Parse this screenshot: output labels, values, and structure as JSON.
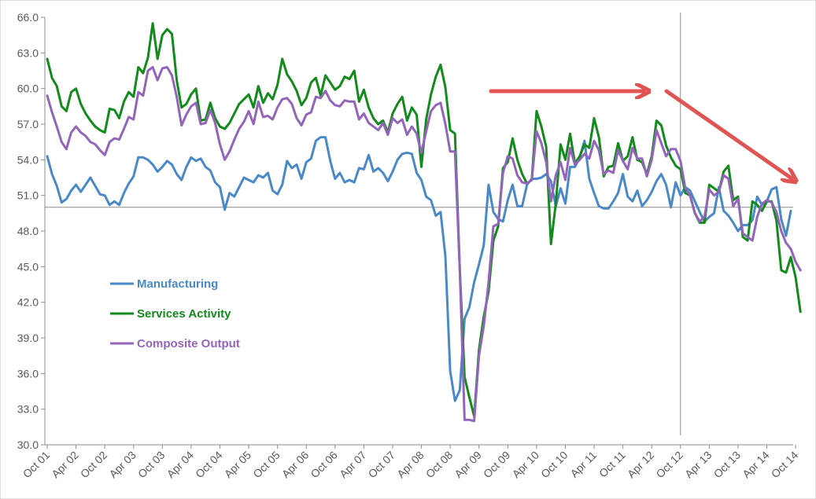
{
  "chart_data": {
    "type": "line",
    "title": "",
    "xlabel": "",
    "ylabel": "",
    "ylim": [
      30.0,
      66.0
    ],
    "y_ticks": [
      "30.0",
      "33.0",
      "36.0",
      "39.0",
      "42.0",
      "45.0",
      "48.0",
      "51.0",
      "54.0",
      "57.0",
      "60.0",
      "63.0",
      "66.0"
    ],
    "x_start": "Oct 01",
    "x_ticks": [
      "Oct 01",
      "Apr 02",
      "Oct 02",
      "Apr 03",
      "Oct 03",
      "Apr 04",
      "Oct 04",
      "Apr 05",
      "Oct 05",
      "Apr 06",
      "Oct 06",
      "Apr 07",
      "Oct 07",
      "Apr 08",
      "Oct 08",
      "Apr 09",
      "Oct 09",
      "Apr 10",
      "Oct 10",
      "Apr 11",
      "Oct 11",
      "Apr 12",
      "Oct 12",
      "Apr 13",
      "Oct 13",
      "Apr 14",
      "Oct 14"
    ],
    "reference_hline": 50.0,
    "reference_vline_x": "Oct 12",
    "legend_position": "left-center",
    "grid": false,
    "series": [
      {
        "name": "Manufacturing",
        "color": "#4a89c8",
        "values": [
          54.3,
          52.8,
          51.8,
          50.4,
          50.7,
          51.4,
          51.9,
          51.3,
          51.9,
          52.5,
          51.8,
          51.1,
          51.0,
          50.2,
          50.5,
          50.2,
          51.2,
          52.0,
          52.6,
          54.2,
          54.2,
          54.0,
          53.6,
          53.0,
          53.4,
          53.9,
          53.6,
          52.8,
          52.3,
          53.4,
          54.2,
          53.9,
          54.1,
          53.4,
          53.1,
          52.1,
          51.7,
          49.8,
          51.2,
          50.9,
          51.7,
          52.5,
          52.3,
          52.1,
          52.7,
          52.5,
          52.9,
          51.4,
          51.1,
          51.9,
          53.9,
          53.3,
          53.6,
          52.4,
          53.8,
          54.1,
          55.6,
          55.9,
          55.9,
          53.9,
          52.4,
          52.9,
          52.1,
          52.3,
          52.1,
          53.3,
          53.2,
          54.4,
          53.0,
          53.3,
          52.9,
          52.2,
          53.0,
          54.0,
          54.5,
          54.6,
          54.5,
          52.9,
          52.3,
          50.9,
          50.6,
          49.3,
          49.6,
          45.9,
          36.2,
          33.7,
          34.6,
          40.6,
          41.6,
          43.7,
          45.2,
          46.8,
          51.9,
          49.6,
          49.0,
          48.8,
          50.6,
          51.9,
          50.1,
          50.1,
          51.9,
          52.4,
          52.4,
          52.5,
          52.8,
          52.2,
          50.1,
          51.6,
          50.3,
          53.4,
          53.4,
          54.2,
          55.6,
          52.4,
          51.2,
          50.1,
          49.9,
          49.9,
          50.5,
          51.2,
          52.8,
          50.9,
          50.5,
          51.4,
          50.1,
          50.6,
          51.3,
          52.2,
          52.8,
          51.9,
          50.0,
          52.1,
          51.0,
          51.7,
          51.4,
          50.5,
          49.6,
          48.8,
          49.2,
          49.5,
          51.7,
          49.7,
          49.3,
          48.7,
          48.0,
          48.5,
          48.5,
          48.9,
          50.9,
          50.2,
          50.5,
          51.5,
          51.7,
          49.0,
          47.6,
          49.7
        ]
      },
      {
        "name": "Services Activity",
        "color": "#128a1c",
        "values": [
          62.5,
          60.9,
          60.2,
          58.5,
          58.1,
          59.7,
          60.0,
          58.7,
          57.9,
          57.3,
          56.8,
          56.5,
          56.3,
          58.3,
          58.2,
          57.5,
          58.9,
          59.7,
          59.3,
          61.8,
          61.3,
          62.6,
          65.5,
          62.5,
          64.5,
          65.0,
          64.6,
          60.7,
          58.4,
          58.7,
          59.5,
          60.0,
          57.3,
          57.4,
          58.8,
          57.5,
          56.8,
          56.6,
          57.1,
          57.9,
          58.7,
          59.1,
          59.5,
          58.4,
          60.2,
          58.8,
          59.6,
          59.1,
          60.3,
          62.5,
          61.2,
          60.6,
          59.8,
          58.6,
          59.2,
          60.5,
          60.9,
          59.4,
          61.1,
          60.5,
          59.9,
          60.2,
          61.0,
          60.8,
          61.5,
          58.9,
          59.9,
          58.4,
          57.5,
          57.0,
          57.3,
          56.3,
          57.9,
          58.7,
          59.3,
          57.3,
          58.4,
          57.8,
          53.4,
          57.4,
          59.5,
          61.0,
          62.0,
          60.1,
          56.5,
          56.2,
          44.8,
          35.7,
          34.0,
          32.4,
          38.0,
          40.8,
          42.9,
          47.2,
          48.4,
          53.3,
          53.8,
          55.8,
          54.0,
          52.8,
          52.0,
          52.3,
          58.1,
          56.8,
          55.1,
          46.9,
          50.3,
          55.3,
          54.0,
          56.2,
          53.7,
          54.3,
          55.3,
          55.0,
          57.5,
          55.9,
          52.6,
          53.4,
          53.5,
          55.4,
          53.9,
          54.3,
          55.9,
          54.0,
          53.8,
          52.8,
          54.3,
          57.3,
          56.9,
          55.2,
          54.2,
          53.5,
          53.2,
          51.2,
          51.0,
          49.5,
          48.7,
          48.7,
          51.9,
          51.6,
          51.3,
          53.0,
          53.5,
          50.6,
          50.9,
          47.5,
          47.2,
          50.5,
          50.2,
          49.7,
          50.5,
          50.5,
          48.9,
          44.7,
          44.5,
          45.8,
          44.1,
          41.2
        ]
      },
      {
        "name": "Composite Output",
        "color": "#9365ba",
        "values": [
          59.4,
          58.0,
          56.8,
          55.5,
          54.9,
          56.3,
          56.8,
          56.3,
          56.0,
          55.5,
          55.3,
          54.8,
          54.4,
          55.5,
          55.8,
          55.7,
          56.6,
          57.6,
          57.4,
          59.7,
          59.4,
          61.5,
          61.8,
          60.7,
          61.7,
          61.8,
          61.1,
          59.3,
          56.9,
          57.8,
          58.5,
          58.8,
          57.0,
          57.1,
          58.2,
          57.1,
          55.3,
          54.0,
          54.7,
          55.7,
          56.6,
          57.2,
          58.1,
          57.0,
          58.9,
          57.6,
          57.7,
          57.4,
          58.4,
          59.1,
          59.2,
          58.7,
          57.5,
          56.9,
          57.8,
          58.0,
          59.3,
          59.2,
          59.8,
          59.0,
          58.6,
          58.5,
          59.0,
          58.9,
          58.9,
          57.4,
          57.9,
          57.1,
          56.8,
          56.5,
          57.1,
          56.1,
          57.5,
          57.1,
          57.4,
          56.1,
          56.8,
          56.2,
          54.6,
          56.4,
          58.1,
          58.6,
          58.8,
          57.0,
          54.7,
          54.7,
          44.8,
          32.1,
          32.1,
          32.0,
          37.5,
          40.0,
          43.7,
          48.4,
          48.6,
          52.9,
          54.3,
          54.1,
          52.7,
          52.1,
          52.0,
          52.3,
          56.4,
          55.4,
          53.8,
          50.5,
          52.7,
          53.8,
          52.3,
          55.0,
          53.6,
          54.0,
          54.5,
          54.1,
          55.6,
          54.8,
          52.8,
          53.1,
          52.9,
          54.8,
          53.9,
          53.2,
          55.0,
          54.1,
          54.1,
          52.6,
          54.0,
          56.5,
          55.4,
          54.3,
          54.9,
          54.9,
          53.9,
          51.6,
          51.0,
          49.5,
          48.8,
          49.2,
          51.5,
          51.0,
          51.3,
          52.7,
          52.4,
          50.1,
          50.7,
          47.8,
          47.5,
          47.2,
          49.2,
          50.3,
          50.6,
          50.4,
          49.6,
          48.0,
          47.0,
          46.5,
          45.4,
          44.7
        ]
      }
    ],
    "annotations": [
      {
        "type": "arrow",
        "direction": "horizontal",
        "color": "#e05454"
      },
      {
        "type": "arrow",
        "direction": "down-right",
        "color": "#e05454"
      }
    ]
  }
}
